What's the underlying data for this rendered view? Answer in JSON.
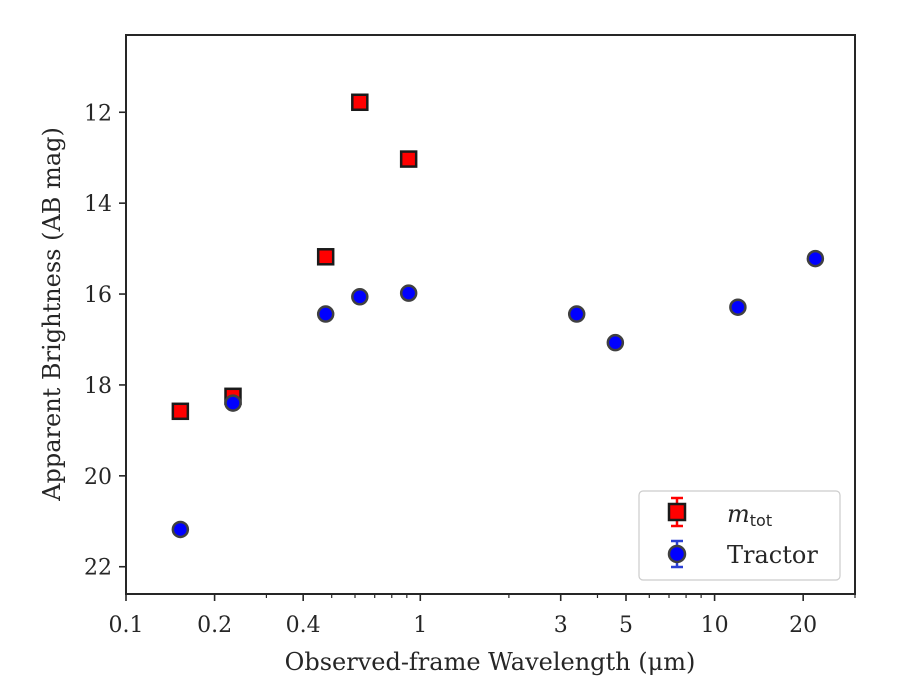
{
  "chart_data": {
    "type": "scatter",
    "xlabel": "Observed-frame Wavelength (μm)",
    "ylabel": "Apparent Brightness (AB mag)",
    "xscale": "log",
    "xlim": [
      0.1,
      30
    ],
    "ylim": [
      22.6,
      10.3
    ],
    "y_inverted": true,
    "x_ticks": [
      0.1,
      0.2,
      0.4,
      1,
      3,
      5,
      10,
      20
    ],
    "x_tick_labels": [
      "0.1",
      "0.2",
      "0.4",
      "1",
      "3",
      "5",
      "10",
      "20"
    ],
    "y_ticks": [
      12,
      14,
      16,
      18,
      20,
      22
    ],
    "y_tick_labels": [
      "12",
      "14",
      "16",
      "18",
      "20",
      "22"
    ],
    "grid": false,
    "legend_position": "bottom-right",
    "series": [
      {
        "name": "m",
        "name_subscript": "tot",
        "marker": "square",
        "color": "#ff0000",
        "edge_color": "#1a1a1a",
        "error_color": "#ff0000",
        "points": [
          {
            "x": 0.153,
            "y": 18.58
          },
          {
            "x": 0.231,
            "y": 18.25
          },
          {
            "x": 0.477,
            "y": 15.18
          },
          {
            "x": 0.623,
            "y": 11.78
          },
          {
            "x": 0.913,
            "y": 13.03
          }
        ]
      },
      {
        "name": "Tractor",
        "marker": "circle",
        "color": "#0000ff",
        "edge_color": "#404040",
        "error_color": "#2a3fd4",
        "points": [
          {
            "x": 0.153,
            "y": 21.18
          },
          {
            "x": 0.231,
            "y": 18.4
          },
          {
            "x": 0.477,
            "y": 16.44
          },
          {
            "x": 0.623,
            "y": 16.06
          },
          {
            "x": 0.913,
            "y": 15.98
          },
          {
            "x": 3.4,
            "y": 16.44
          },
          {
            "x": 4.6,
            "y": 17.07
          },
          {
            "x": 12.0,
            "y": 16.29
          },
          {
            "x": 22.0,
            "y": 15.22
          }
        ]
      }
    ]
  }
}
